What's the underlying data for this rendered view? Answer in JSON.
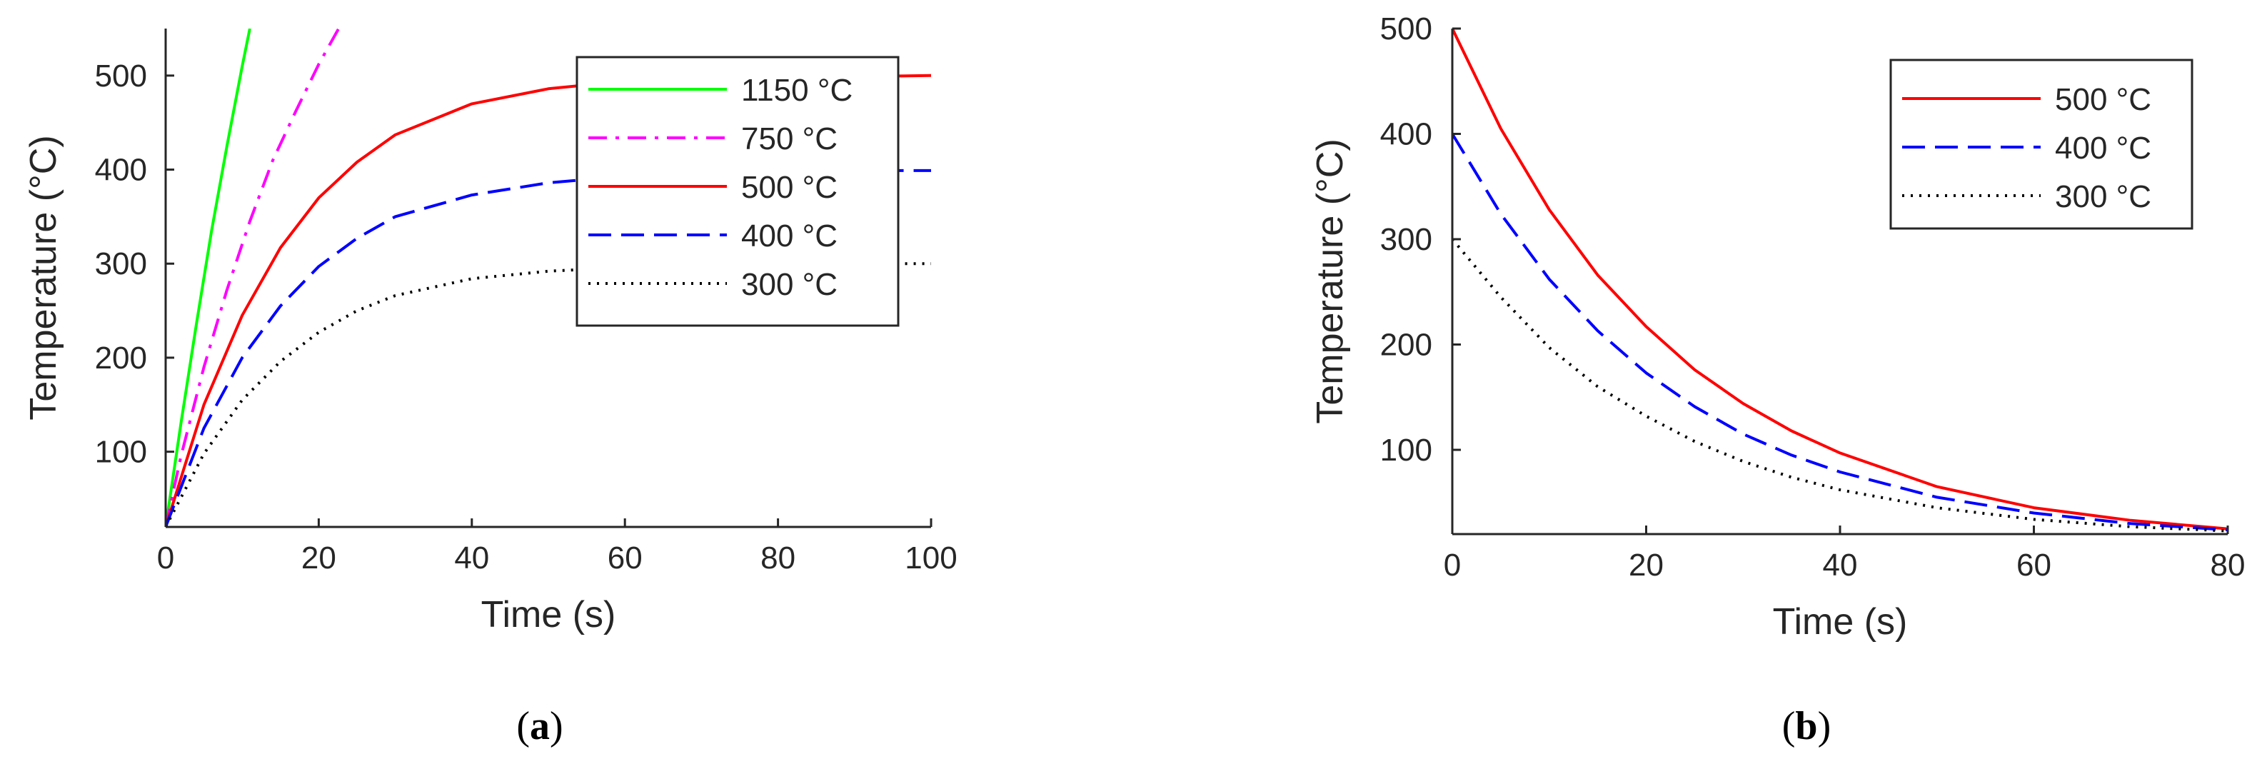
{
  "colors": {
    "green": "#00ff00",
    "magenta": "#ff00ff",
    "red": "#ff0000",
    "blue": "#0000ff",
    "black": "#000000",
    "axis": "#262626"
  },
  "captions": {
    "a": "a",
    "b": "b"
  },
  "chart_data": [
    {
      "id": "a",
      "type": "line",
      "xlabel": "Time (s)",
      "ylabel": "Temperature (°C)",
      "xlim": [
        0,
        100
      ],
      "ylim": [
        20,
        550
      ],
      "xticks": [
        0,
        20,
        40,
        60,
        80,
        100
      ],
      "yticks": [
        100,
        200,
        300,
        400,
        500
      ],
      "grid": false,
      "legend_position": "top-right",
      "series": [
        {
          "name": "1150 °C",
          "color": "green",
          "style": "solid",
          "x": [
            0,
            2,
            4,
            6,
            8,
            10,
            11
          ],
          "y": [
            20,
            130,
            235,
            335,
            425,
            510,
            550
          ]
        },
        {
          "name": "750 °C",
          "color": "magenta",
          "style": "dashdot",
          "x": [
            0,
            2,
            5,
            8,
            11,
            14,
            17,
            20,
            22.6
          ],
          "y": [
            20,
            95,
            190,
            272,
            345,
            410,
            462,
            512,
            550
          ]
        },
        {
          "name": "500 °C",
          "color": "red",
          "style": "solid",
          "x": [
            0,
            5,
            10,
            15,
            20,
            25,
            30,
            40,
            50,
            60,
            70,
            80,
            90,
            100
          ],
          "y": [
            20,
            150,
            245,
            317,
            370,
            408,
            437,
            470,
            486,
            494,
            497,
            499,
            499,
            500
          ]
        },
        {
          "name": "400 °C",
          "color": "blue",
          "style": "dashed",
          "x": [
            0,
            5,
            10,
            15,
            20,
            25,
            30,
            40,
            50,
            60,
            70,
            80,
            90,
            100
          ],
          "y": [
            20,
            125,
            200,
            255,
            297,
            327,
            350,
            373,
            386,
            393,
            396,
            398,
            399,
            399
          ]
        },
        {
          "name": "300 °C",
          "color": "black",
          "style": "dotted",
          "x": [
            0,
            5,
            10,
            15,
            20,
            25,
            30,
            40,
            50,
            60,
            70,
            80,
            90,
            100
          ],
          "y": [
            20,
            98,
            155,
            196,
            227,
            250,
            266,
            284,
            292,
            296,
            298,
            299,
            300,
            300
          ]
        }
      ]
    },
    {
      "id": "b",
      "type": "line",
      "xlabel": "Time (s)",
      "ylabel": "Temperature (°C)",
      "xlim": [
        0,
        80
      ],
      "ylim": [
        20,
        500
      ],
      "xticks": [
        0,
        20,
        40,
        60,
        80
      ],
      "yticks": [
        100,
        200,
        300,
        400,
        500
      ],
      "grid": false,
      "legend_position": "top-right",
      "series": [
        {
          "name": "500 °C",
          "color": "red",
          "style": "solid",
          "x": [
            0,
            5,
            10,
            15,
            20,
            25,
            30,
            35,
            40,
            50,
            60,
            70,
            80
          ],
          "y": [
            500,
            405,
            328,
            266,
            217,
            176,
            144,
            118,
            97,
            65,
            45,
            33,
            25
          ]
        },
        {
          "name": "400 °C",
          "color": "blue",
          "style": "dashed",
          "x": [
            0,
            5,
            10,
            15,
            20,
            25,
            30,
            35,
            40,
            50,
            60,
            70,
            80
          ],
          "y": [
            400,
            324,
            262,
            213,
            173,
            141,
            115,
            95,
            79,
            55,
            40,
            30,
            24
          ]
        },
        {
          "name": "300 °C",
          "color": "black",
          "style": "dotted",
          "x": [
            0,
            5,
            10,
            15,
            20,
            25,
            30,
            35,
            40,
            50,
            60,
            70,
            80
          ],
          "y": [
            300,
            245,
            197,
            160,
            132,
            108,
            89,
            74,
            62,
            45,
            34,
            27,
            23
          ]
        }
      ]
    }
  ]
}
